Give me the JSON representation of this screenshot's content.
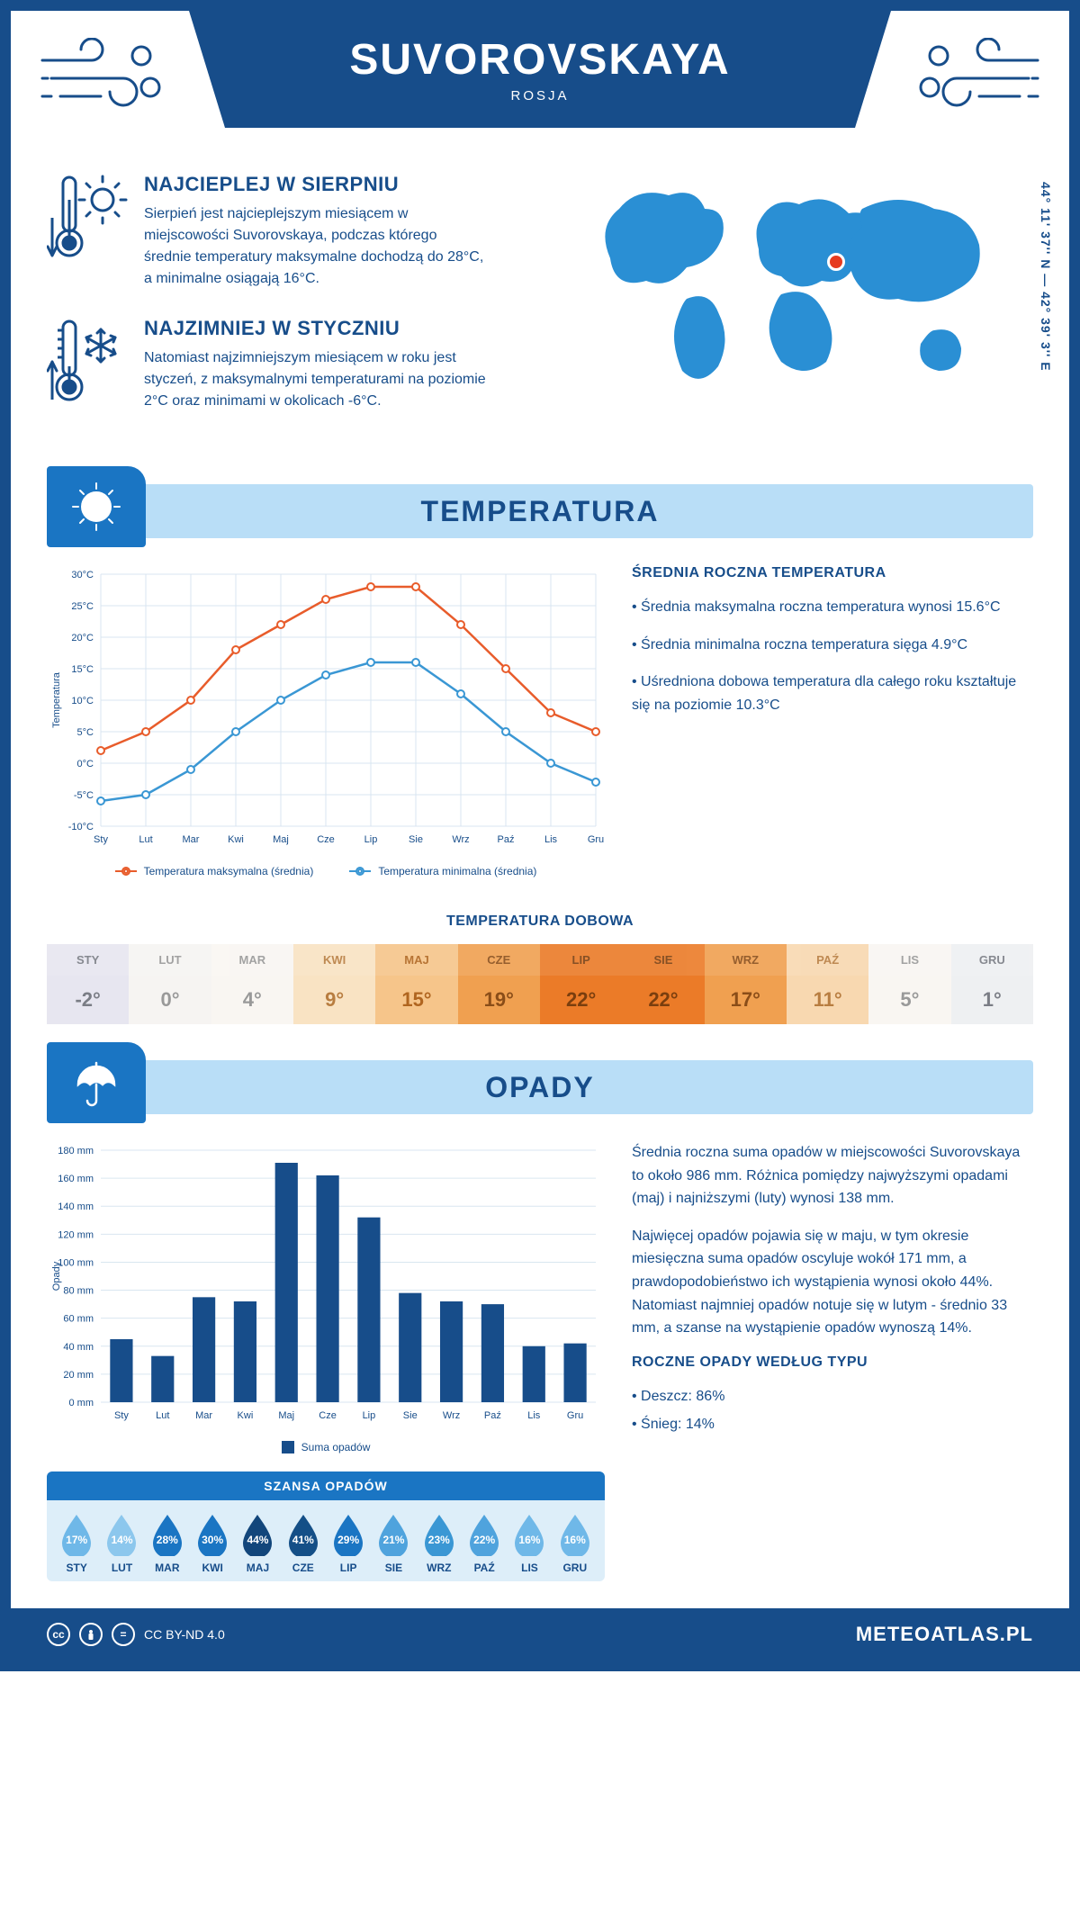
{
  "header": {
    "title": "SUVOROVSKAYA",
    "subtitle": "ROSJA"
  },
  "coords": "44° 11' 37'' N — 42° 39' 3'' E",
  "map_marker": {
    "left_pct": 61,
    "top_pct": 38
  },
  "hottest": {
    "heading": "NAJCIEPLEJ W SIERPNIU",
    "text": "Sierpień jest najcieplejszym miesiącem w miejscowości Suvorovskaya, podczas którego średnie temperatury maksymalne dochodzą do 28°C, a minimalne osiągają 16°C."
  },
  "coldest": {
    "heading": "NAJZIMNIEJ W STYCZNIU",
    "text": "Natomiast najzimniejszym miesiącem w roku jest styczeń, z maksymalnymi temperaturami na poziomie 2°C oraz minimami w okolicach -6°C."
  },
  "section_temp": "TEMPERATURA",
  "section_rain": "OPADY",
  "temp_chart": {
    "type": "line",
    "months": [
      "Sty",
      "Lut",
      "Mar",
      "Kwi",
      "Maj",
      "Cze",
      "Lip",
      "Sie",
      "Wrz",
      "Paź",
      "Lis",
      "Gru"
    ],
    "y_axis_label": "Temperatura",
    "ylim": [
      -10,
      30
    ],
    "ytick_step": 5,
    "ytick_labels": [
      "-10°C",
      "-5°C",
      "0°C",
      "5°C",
      "10°C",
      "15°C",
      "20°C",
      "25°C",
      "30°C"
    ],
    "series_max": {
      "label": "Temperatura maksymalna (średnia)",
      "color": "#e85c2b",
      "values": [
        2,
        5,
        10,
        18,
        22,
        26,
        28,
        28,
        22,
        15,
        8,
        5
      ]
    },
    "series_min": {
      "label": "Temperatura minimalna (średnia)",
      "color": "#3a97d4",
      "values": [
        -6,
        -5,
        -1,
        5,
        10,
        14,
        16,
        16,
        11,
        5,
        0,
        -3
      ]
    },
    "grid_color": "#d9e6f0",
    "background": "#ffffff"
  },
  "temp_side": {
    "heading": "ŚREDNIA ROCZNA TEMPERATURA",
    "bullets": [
      "• Średnia maksymalna roczna temperatura wynosi 15.6°C",
      "• Średnia minimalna roczna temperatura sięga 4.9°C",
      "• Uśredniona dobowa temperatura dla całego roku kształtuje się na poziomie 10.3°C"
    ]
  },
  "dobowa": {
    "heading": "TEMPERATURA DOBOWA",
    "months": [
      "STY",
      "LUT",
      "MAR",
      "KWI",
      "MAJ",
      "CZE",
      "LIP",
      "SIE",
      "WRZ",
      "PAŹ",
      "LIS",
      "GRU"
    ],
    "values": [
      "-2°",
      "0°",
      "4°",
      "9°",
      "15°",
      "19°",
      "22°",
      "22°",
      "17°",
      "11°",
      "5°",
      "1°"
    ],
    "bg_colors": [
      "#e7e6f0",
      "#f6f4f2",
      "#f9f6f2",
      "#f9e3c3",
      "#f6c58a",
      "#f0a050",
      "#eb7b28",
      "#eb7b28",
      "#f0a050",
      "#f8d8b0",
      "#f9f6f2",
      "#eef0f2"
    ],
    "text_colors": [
      "#7a7d85",
      "#999",
      "#999",
      "#b87d40",
      "#b0651f",
      "#8a4d18",
      "#7a3e0e",
      "#7a3e0e",
      "#8a4d18",
      "#b87d40",
      "#999",
      "#7a7d85"
    ]
  },
  "rain_chart": {
    "type": "bar",
    "months": [
      "Sty",
      "Lut",
      "Mar",
      "Kwi",
      "Maj",
      "Cze",
      "Lip",
      "Sie",
      "Wrz",
      "Paź",
      "Lis",
      "Gru"
    ],
    "y_axis_label": "Opady",
    "values": [
      45,
      33,
      75,
      72,
      171,
      162,
      132,
      78,
      72,
      70,
      40,
      42
    ],
    "ylim": [
      0,
      180
    ],
    "ytick_step": 20,
    "ytick_labels": [
      "0 mm",
      "20 mm",
      "40 mm",
      "60 mm",
      "80 mm",
      "100 mm",
      "120 mm",
      "140 mm",
      "160 mm",
      "180 mm"
    ],
    "bar_color": "#174d8a",
    "grid_color": "#d9e6f0",
    "legend_label": "Suma opadów"
  },
  "rain_side": {
    "p1": "Średnia roczna suma opadów w miejscowości Suvorovskaya to około 986 mm. Różnica pomiędzy najwyższymi opadami (maj) i najniższymi (luty) wynosi 138 mm.",
    "p2": "Najwięcej opadów pojawia się w maju, w tym okresie miesięczna suma opadów oscyluje wokół 171 mm, a prawdopodobieństwo ich wystąpienia wynosi około 44%. Natomiast najmniej opadów notuje się w lutym - średnio 33 mm, a szanse na wystąpienie opadów wynoszą 14%.",
    "type_heading": "ROCZNE OPADY WEDŁUG TYPU",
    "type_bullets": [
      "• Deszcz: 86%",
      "• Śnieg: 14%"
    ]
  },
  "rain_chance": {
    "heading": "SZANSA OPADÓW",
    "months": [
      "STY",
      "LUT",
      "MAR",
      "KWI",
      "MAJ",
      "CZE",
      "LIP",
      "SIE",
      "WRZ",
      "PAŹ",
      "LIS",
      "GRU"
    ],
    "values": [
      "17%",
      "14%",
      "28%",
      "30%",
      "44%",
      "41%",
      "29%",
      "21%",
      "23%",
      "22%",
      "16%",
      "16%"
    ],
    "colors": [
      "#6fb8e8",
      "#8cc7ed",
      "#1a75c3",
      "#1a75c3",
      "#12467b",
      "#144f87",
      "#1a75c3",
      "#4fa3dd",
      "#3a97d4",
      "#4fa3dd",
      "#6fb8e8",
      "#6fb8e8"
    ]
  },
  "footer": {
    "license": "CC BY-ND 4.0",
    "brand": "METEOATLAS.PL"
  },
  "colors": {
    "primary": "#174d8a",
    "accent_blue": "#1a75c3",
    "light_blue": "#b9def7",
    "map_blue": "#2a8fd4"
  }
}
